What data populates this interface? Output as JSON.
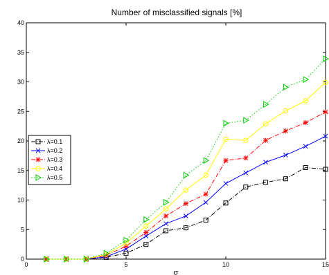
{
  "chart_data": {
    "type": "line",
    "title": "Number of misclassified signals [%]",
    "xlabel": "σ",
    "ylabel": "",
    "xlim": [
      0,
      15
    ],
    "ylim": [
      0,
      40
    ],
    "xticks": [
      0,
      5,
      10,
      15
    ],
    "yticks": [
      0,
      5,
      10,
      15,
      20,
      25,
      30,
      35,
      40
    ],
    "grid": false,
    "legend_position": "left-middle",
    "x": [
      1,
      2,
      3,
      4,
      5,
      6,
      7,
      8,
      9,
      10,
      11,
      12,
      13,
      14,
      15
    ],
    "series": [
      {
        "name": "λ=0.1",
        "color": "#000000",
        "marker": "square",
        "dash": "dash-dot",
        "values": [
          0,
          0,
          0,
          0.3,
          1.0,
          2.5,
          4.8,
          5.3,
          6.6,
          9.5,
          12.2,
          13.0,
          13.6,
          15.5,
          15.2
        ]
      },
      {
        "name": "λ=0.2",
        "color": "#0000ff",
        "marker": "x",
        "dash": "solid",
        "values": [
          0,
          0,
          0,
          0.4,
          1.7,
          3.9,
          6.0,
          7.3,
          9.6,
          12.8,
          14.6,
          16.4,
          17.6,
          19.1,
          20.8
        ]
      },
      {
        "name": "λ=0.3",
        "color": "#ff0000",
        "marker": "asterisk",
        "dash": "dash-dot",
        "values": [
          0,
          0,
          0,
          0.6,
          2.2,
          4.5,
          7.3,
          9.4,
          11.0,
          16.7,
          17.1,
          20.1,
          21.7,
          23.1,
          24.9
        ]
      },
      {
        "name": "λ=0.4",
        "color": "#ffff00",
        "marker": "circle",
        "dash": "solid",
        "values": [
          0,
          0,
          0,
          0.8,
          2.7,
          5.6,
          8.5,
          11.7,
          14.2,
          20.3,
          20.1,
          22.9,
          25.1,
          26.8,
          29.9
        ]
      },
      {
        "name": "λ=0.5",
        "color": "#00cc00",
        "marker": "triangle-right",
        "dash": "dot",
        "values": [
          0,
          0,
          0,
          1.0,
          3.2,
          6.7,
          9.6,
          14.2,
          16.7,
          23.0,
          23.5,
          26.2,
          29.1,
          30.4,
          33.9
        ]
      }
    ]
  }
}
